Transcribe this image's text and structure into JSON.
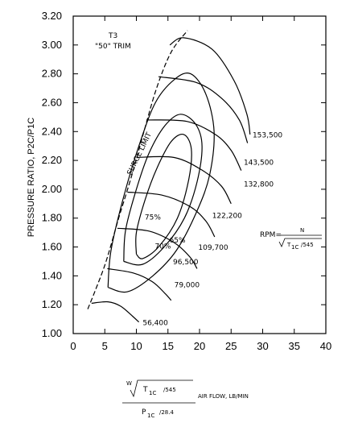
{
  "chart_data": {
    "type": "line",
    "title": "T3",
    "subtitle": "\"50\" TRIM",
    "xlabel_prefix": "W",
    "xlabel_sqrt_term": "T",
    "xlabel_sqrt_sub": "1C",
    "xlabel_sqrt_den": "/545",
    "xlabel_denominator": "P",
    "xlabel_den_sub": "1C",
    "xlabel_den_value": "/28.4",
    "xlabel_suffix": "AIR FLOW, LB/MIN",
    "ylabel": "PRESSURE  RATIO,  P2C/P1C",
    "xlim": [
      0,
      40
    ],
    "ylim": [
      1.0,
      3.2
    ],
    "x_ticks": [
      "0",
      "5",
      "10",
      "15",
      "20",
      "25",
      "30",
      "35",
      "40"
    ],
    "y_ticks": [
      "1.00",
      "1.20",
      "1.40",
      "1.60",
      "1.80",
      "2.00",
      "2.20",
      "2.40",
      "2.60",
      "2.80",
      "3.00",
      "3.20"
    ],
    "x_tick_values": [
      0,
      5,
      10,
      15,
      20,
      25,
      30,
      35,
      40
    ],
    "y_tick_values": [
      1.0,
      1.2,
      1.4,
      1.6,
      1.8,
      2.0,
      2.2,
      2.4,
      2.6,
      2.8,
      3.0,
      3.2
    ],
    "surge_limit_label": "SURGE  LIMIT",
    "surge_line": [
      [
        2.3,
        1.17
      ],
      [
        3.5,
        1.3
      ],
      [
        5.2,
        1.5
      ],
      [
        7.2,
        1.8
      ],
      [
        9.3,
        2.1
      ],
      [
        11.2,
        2.4
      ],
      [
        13.2,
        2.7
      ],
      [
        15.5,
        2.95
      ],
      [
        18.1,
        3.1
      ]
    ],
    "rpm_formula": {
      "lhs": "RPM=",
      "numerator": "N",
      "radicand": "T",
      "radicand_sub": "1C",
      "radicand_den": "/545"
    },
    "speed_lines": [
      {
        "label": "56,400",
        "points": [
          [
            2.9,
            1.21
          ],
          [
            5.5,
            1.22
          ],
          [
            7.5,
            1.19
          ],
          [
            9.4,
            1.12
          ],
          [
            10.4,
            1.08
          ]
        ]
      },
      {
        "label": "79,000",
        "points": [
          [
            5.4,
            1.45
          ],
          [
            9.5,
            1.42
          ],
          [
            12.5,
            1.36
          ],
          [
            14.5,
            1.28
          ],
          [
            15.5,
            1.23
          ]
        ]
      },
      {
        "label": "96,500",
        "points": [
          [
            7.0,
            1.73
          ],
          [
            12.0,
            1.71
          ],
          [
            16.0,
            1.63
          ],
          [
            18.5,
            1.53
          ],
          [
            19.6,
            1.45
          ]
        ]
      },
      {
        "label": "109,700",
        "points": [
          [
            8.6,
            1.98
          ],
          [
            14.0,
            1.96
          ],
          [
            18.5,
            1.88
          ],
          [
            21.0,
            1.78
          ],
          [
            22.4,
            1.67
          ]
        ]
      },
      {
        "label": "122,200",
        "points": [
          [
            10.0,
            2.22
          ],
          [
            16.0,
            2.22
          ],
          [
            20.5,
            2.13
          ],
          [
            23.5,
            2.02
          ],
          [
            25.0,
            1.9
          ]
        ]
      },
      {
        "label": "132,800",
        "points": [
          [
            11.6,
            2.48
          ],
          [
            18.0,
            2.47
          ],
          [
            22.5,
            2.38
          ],
          [
            25.0,
            2.27
          ],
          [
            26.6,
            2.13
          ]
        ]
      },
      {
        "label": "143,500",
        "points": [
          [
            13.5,
            2.78
          ],
          [
            19.5,
            2.74
          ],
          [
            23.5,
            2.63
          ],
          [
            26.3,
            2.48
          ],
          [
            27.6,
            2.32
          ]
        ]
      },
      {
        "label": "153,500",
        "points": [
          [
            15.3,
            3.0
          ],
          [
            17.5,
            3.05
          ],
          [
            22.0,
            2.97
          ],
          [
            25.5,
            2.75
          ],
          [
            27.5,
            2.52
          ],
          [
            28.0,
            2.38
          ]
        ]
      }
    ],
    "efficiency_islands": [
      {
        "label": "75%",
        "points": [
          [
            10.0,
            1.55
          ],
          [
            10.0,
            1.7
          ],
          [
            11.4,
            1.93
          ],
          [
            13.3,
            2.15
          ],
          [
            15.5,
            2.33
          ],
          [
            17.5,
            2.38
          ],
          [
            18.7,
            2.28
          ],
          [
            18.3,
            2.07
          ],
          [
            16.5,
            1.8
          ],
          [
            13.5,
            1.6
          ],
          [
            11.0,
            1.52
          ],
          [
            10.0,
            1.55
          ]
        ]
      },
      {
        "label": "70%",
        "points": [
          [
            8.0,
            1.5
          ],
          [
            8.3,
            1.72
          ],
          [
            10.0,
            2.0
          ],
          [
            12.0,
            2.25
          ],
          [
            14.5,
            2.44
          ],
          [
            17.0,
            2.52
          ],
          [
            19.4,
            2.45
          ],
          [
            20.4,
            2.3
          ],
          [
            19.6,
            2.05
          ],
          [
            17.6,
            1.8
          ],
          [
            14.4,
            1.6
          ],
          [
            11.0,
            1.48
          ],
          [
            8.0,
            1.5
          ]
        ]
      },
      {
        "label": "65%",
        "points": [
          [
            5.5,
            1.32
          ],
          [
            6.0,
            1.58
          ],
          [
            8.0,
            1.95
          ],
          [
            10.4,
            2.3
          ],
          [
            13.0,
            2.6
          ],
          [
            16.0,
            2.76
          ],
          [
            18.6,
            2.8
          ],
          [
            21.0,
            2.66
          ],
          [
            22.3,
            2.4
          ],
          [
            21.6,
            2.1
          ],
          [
            19.6,
            1.85
          ],
          [
            16.4,
            1.58
          ],
          [
            12.6,
            1.4
          ],
          [
            8.6,
            1.29
          ],
          [
            5.5,
            1.32
          ]
        ]
      }
    ],
    "island_label_positions": [
      [
        12.6,
        1.79
      ],
      [
        14.2,
        1.59
      ],
      [
        16.5,
        1.63
      ]
    ],
    "speed_label_positions": [
      [
        11.0,
        1.06
      ],
      [
        16.0,
        1.32
      ],
      [
        15.8,
        1.48
      ],
      [
        19.8,
        1.58
      ],
      [
        22.0,
        1.8
      ],
      [
        27.0,
        2.02
      ],
      [
        27.0,
        2.17
      ],
      [
        28.4,
        2.36
      ]
    ],
    "grid": false
  }
}
